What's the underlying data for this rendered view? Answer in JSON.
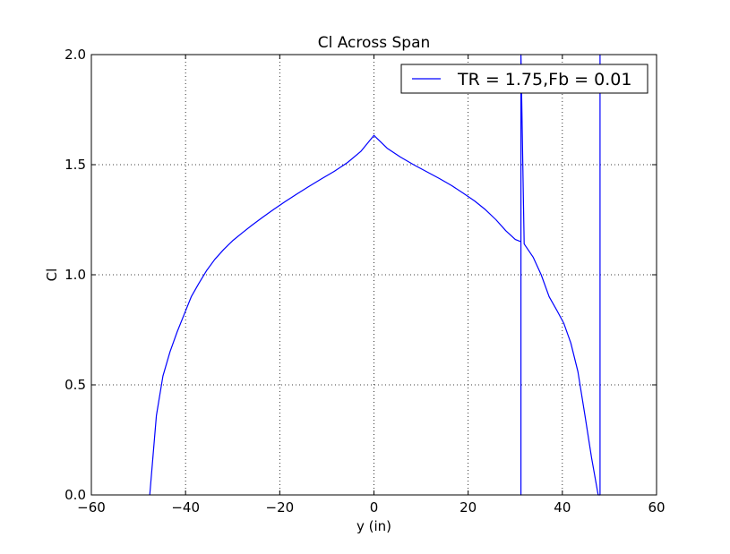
{
  "chart_data": {
    "type": "line",
    "title": "Cl Across Span",
    "xlabel": "y (in)",
    "ylabel": "Cl",
    "xlim": [
      -60,
      60
    ],
    "ylim": [
      0.0,
      2.0
    ],
    "x_ticks": [
      -60,
      -40,
      -20,
      0,
      20,
      40,
      60
    ],
    "x_tick_labels": [
      "−60",
      "−40",
      "−20",
      "0",
      "20",
      "40",
      "60"
    ],
    "y_ticks": [
      0.0,
      0.5,
      1.0,
      1.5,
      2.0
    ],
    "y_tick_labels": [
      "0.0",
      "0.5",
      "1.0",
      "1.5",
      "2.0"
    ],
    "grid": true,
    "legend_position": "top-right",
    "series": [
      {
        "name": "TR = 1.75,Fb = 0.01",
        "color": "#0000ff",
        "x": [
          -47.6,
          -46.2,
          -44.8,
          -43.3,
          -41.8,
          -40.3,
          -38.8,
          -37.2,
          -35.5,
          -33.8,
          -31.9,
          -30.0,
          -28.0,
          -25.9,
          -23.7,
          -21.4,
          -19.0,
          -16.5,
          -13.9,
          -11.2,
          -8.4,
          -5.6,
          -2.8,
          0.0,
          2.8,
          5.6,
          8.4,
          11.2,
          13.9,
          16.5,
          19.0,
          21.4,
          23.7,
          25.9,
          28.0,
          30.0,
          31.2,
          31.2,
          31.2,
          31.9,
          33.8,
          35.5,
          37.2,
          38.8,
          40.3,
          41.8,
          43.3,
          44.8,
          46.2,
          47.6,
          48.0,
          48.0
        ],
        "y": [
          0.0,
          0.36,
          0.54,
          0.65,
          0.74,
          0.82,
          0.9,
          0.96,
          1.02,
          1.07,
          1.115,
          1.155,
          1.19,
          1.225,
          1.26,
          1.295,
          1.33,
          1.365,
          1.4,
          1.435,
          1.47,
          1.51,
          1.56,
          1.633,
          1.575,
          1.535,
          1.5,
          1.468,
          1.437,
          1.405,
          1.37,
          1.335,
          1.295,
          1.25,
          1.2,
          1.16,
          1.15,
          0.0,
          2.0,
          1.14,
          1.08,
          1.0,
          0.9,
          0.84,
          0.78,
          0.69,
          0.56,
          0.36,
          0.17,
          0.0,
          0.0,
          2.0
        ]
      }
    ]
  }
}
